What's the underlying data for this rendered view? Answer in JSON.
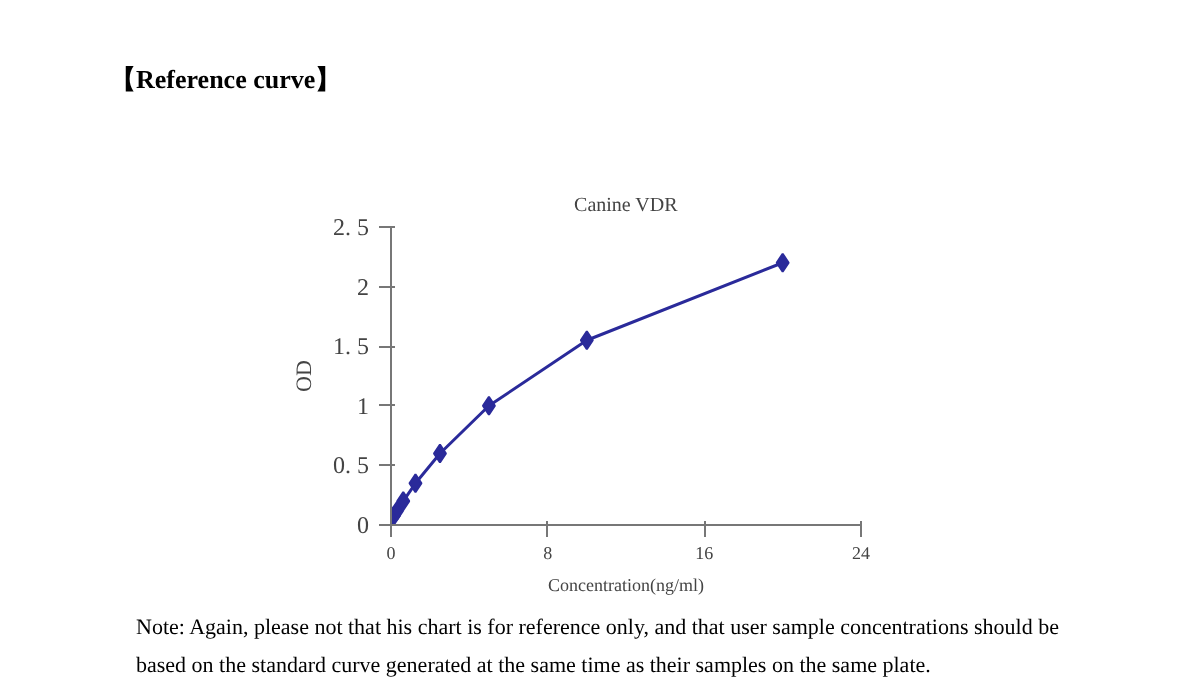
{
  "chart_data": {
    "type": "line",
    "title": "【Reference curve】",
    "subtitle": "Canine VDR",
    "xlabel": "Concentration(ng/ml)",
    "ylabel": "OD",
    "x": [
      0,
      0.156,
      0.3125,
      0.625,
      1.25,
      2.5,
      5,
      10,
      20
    ],
    "series": [
      {
        "color": "#2a2a9a",
        "values": [
          0.05,
          0.08,
          0.12,
          0.2,
          0.35,
          0.6,
          1.0,
          1.55,
          2.2
        ]
      }
    ],
    "xlim": [
      0,
      24
    ],
    "xticks": [
      0,
      8,
      16,
      24
    ],
    "ylim": [
      0,
      2.5
    ],
    "yticks": [
      0,
      {
        "value": 0.5,
        "label": "0. 5"
      },
      1,
      {
        "value": 1.5,
        "label": "1. 5"
      },
      2,
      {
        "value": 2.5,
        "label": "2. 5"
      }
    ],
    "grid": false,
    "marker": "diamond",
    "line_style": "solid",
    "annotations": [
      "Note: Again, please not that his chart is for reference only, and that user sample concentrations should be based on the standard curve generated at the same time as their samples on the same plate."
    ]
  }
}
